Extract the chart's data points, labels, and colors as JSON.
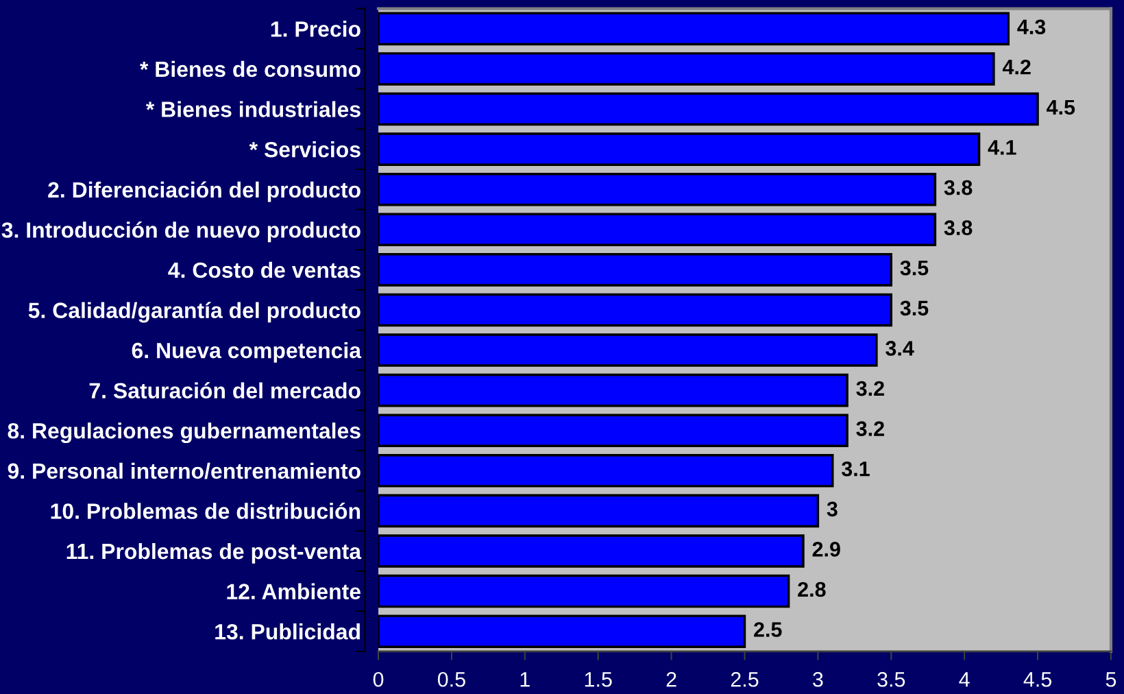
{
  "chart_data": {
    "type": "bar",
    "orientation": "horizontal",
    "categories": [
      "1. Precio",
      "* Bienes de consumo",
      "* Bienes industriales",
      "* Servicios",
      "2. Diferenciación del producto",
      "3. Introducción de nuevo producto",
      "4. Costo de ventas",
      "5. Calidad/garantía del producto",
      "6. Nueva competencia",
      "7. Saturación del mercado",
      "8. Regulaciones gubernamentales",
      "9. Personal interno/entrenamiento",
      "10. Problemas de distribución",
      "11. Problemas de post-venta",
      "12. Ambiente",
      "13. Publicidad"
    ],
    "values": [
      4.3,
      4.2,
      4.5,
      4.1,
      3.8,
      3.8,
      3.5,
      3.5,
      3.4,
      3.2,
      3.2,
      3.1,
      3,
      2.9,
      2.8,
      2.5
    ],
    "color": "#0000ff",
    "data_labels": true,
    "xlim": [
      0,
      5
    ],
    "xticks": [
      0,
      0.5,
      1,
      1.5,
      2,
      2.5,
      3,
      3.5,
      4,
      4.5,
      5
    ]
  }
}
